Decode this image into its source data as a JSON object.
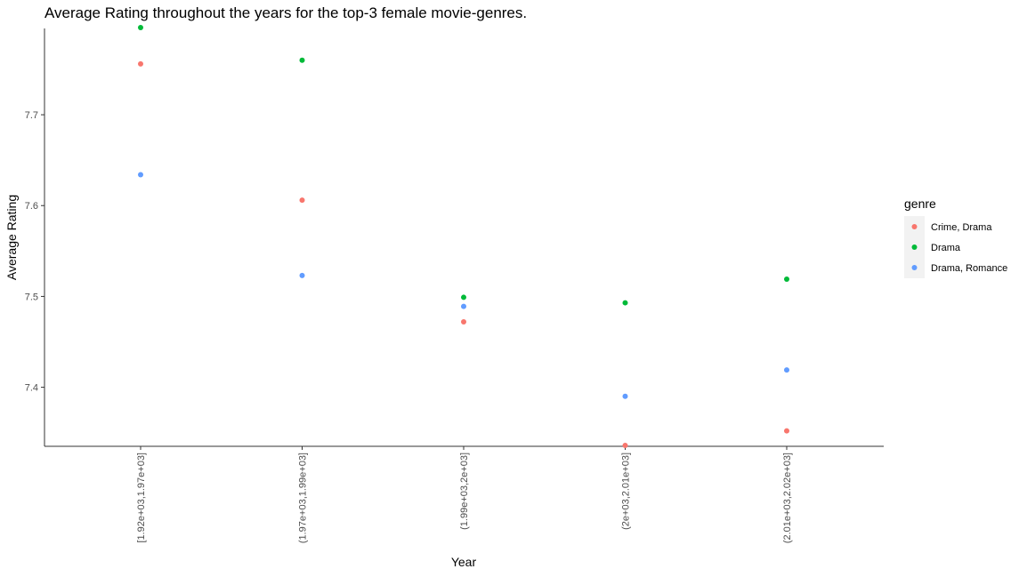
{
  "chart_data": {
    "type": "scatter",
    "title": "Average Rating throughout the years for the top-3 female movie-genres.",
    "xlabel": "Year",
    "ylabel": "Average Rating",
    "categories": [
      "[1.92e+03,1.97e+03]",
      "(1.97e+03,1.99e+03]",
      "(1.99e+03,2e+03]",
      "(2e+03,2.01e+03]",
      "(2.01e+03,2.02e+03]"
    ],
    "y_ticks": [
      "7.4",
      "7.5",
      "7.6",
      "7.7"
    ],
    "ylim": [
      7.335,
      7.795
    ],
    "grid": false,
    "legend_title": "genre",
    "legend_position": "right",
    "series": [
      {
        "name": "Crime, Drama",
        "color": "#F8766D",
        "values": [
          7.756,
          7.606,
          7.472,
          7.336,
          7.352
        ]
      },
      {
        "name": "Drama",
        "color": "#00BA38",
        "values": [
          7.796,
          7.76,
          7.499,
          7.493,
          7.519
        ]
      },
      {
        "name": "Drama, Romance",
        "color": "#619CFF",
        "values": [
          7.634,
          7.523,
          7.489,
          7.39,
          7.419
        ]
      }
    ]
  }
}
